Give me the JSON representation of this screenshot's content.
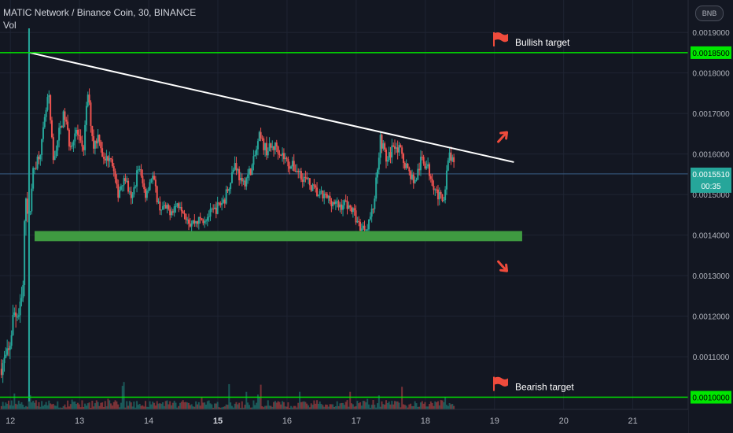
{
  "header": {
    "title": "MATIC Network / Binance Coin, 30, BINANCE",
    "indicator": "Vol",
    "symbol_badge": "BNB"
  },
  "colors": {
    "background": "#131722",
    "grid": "#1f2433",
    "up": "#26a69a",
    "down": "#ef5350",
    "target_line": "#00e600",
    "trendline": "#ffffff",
    "support_zone": "#3f9a41",
    "arrow": "#ef4b3c",
    "last_price": "#26a69a",
    "axis_text": "#b2b5be"
  },
  "icons": [
    "flag-icon",
    "arrow-up-right-icon",
    "arrow-down-right-icon"
  ],
  "chart_data": {
    "type": "candlestick",
    "grid": true,
    "ylim": [
      0.00097,
      0.00198
    ],
    "xlim": [
      11.85,
      21.8
    ],
    "y_ticks": [
      "0.0011000",
      "0.0012000",
      "0.0013000",
      "0.0014000",
      "0.0015000",
      "0.0016000",
      "0.0017000",
      "0.0018000",
      "0.0019000"
    ],
    "y_tick_values": [
      0.0011,
      0.0012,
      0.0013,
      0.0014,
      0.0015,
      0.0016,
      0.0017,
      0.0018,
      0.0019
    ],
    "x_ticks": [
      "12",
      "13",
      "14",
      "15",
      "16",
      "17",
      "18",
      "19",
      "20",
      "21"
    ],
    "x_tick_values": [
      12,
      13,
      14,
      15,
      16,
      17,
      18,
      19,
      20,
      21
    ],
    "x_tick_bold": [
      "15"
    ],
    "last_price": {
      "value": 0.001551,
      "label": "0.0015510",
      "countdown": "00:35"
    },
    "targets": [
      {
        "name": "Bullish target",
        "value": 0.00185,
        "label": "0.0018500"
      },
      {
        "name": "Bearish target",
        "value": 0.001,
        "label": "0.0010000"
      }
    ],
    "trendline": {
      "start": [
        12.28,
        0.00185
      ],
      "end": [
        19.28,
        0.00158
      ]
    },
    "support_zone": {
      "x": [
        12.35,
        19.4
      ],
      "y": [
        0.001385,
        0.00141
      ]
    },
    "arrows": [
      {
        "direction": "up",
        "x": 19.1,
        "y": 0.00164
      },
      {
        "direction": "down",
        "x": 19.1,
        "y": 0.001325
      }
    ],
    "price_path_x": [
      11.85,
      11.98,
      12.05,
      12.12,
      12.18,
      12.22,
      12.27,
      12.32,
      12.45,
      12.55,
      12.62,
      12.7,
      12.78,
      12.86,
      12.95,
      13.05,
      13.12,
      13.2,
      13.28,
      13.35,
      13.45,
      13.55,
      13.65,
      13.75,
      13.85,
      13.95,
      14.05,
      14.15,
      14.3,
      14.45,
      14.6,
      14.8,
      14.95,
      15.1,
      15.25,
      15.35,
      15.5,
      15.6,
      15.7,
      15.85,
      16.0,
      16.15,
      16.3,
      16.45,
      16.6,
      16.75,
      16.85,
      16.95,
      17.05,
      17.15,
      17.25,
      17.35,
      17.45,
      17.55,
      17.65,
      17.75,
      17.85,
      17.95,
      18.05,
      18.15,
      18.25,
      18.35,
      18.45
    ],
    "price_path_y": [
      0.00107,
      0.00111,
      0.00121,
      0.0012,
      0.00125,
      0.00152,
      0.00143,
      0.00155,
      0.00162,
      0.00175,
      0.00158,
      0.00165,
      0.0017,
      0.00162,
      0.00166,
      0.0016,
      0.00175,
      0.00162,
      0.00165,
      0.00158,
      0.0016,
      0.0015,
      0.00155,
      0.00148,
      0.00157,
      0.0015,
      0.00155,
      0.00147,
      0.00146,
      0.00148,
      0.00143,
      0.00144,
      0.00146,
      0.00149,
      0.00158,
      0.00152,
      0.00157,
      0.00164,
      0.00161,
      0.00162,
      0.00158,
      0.00156,
      0.00153,
      0.0015,
      0.00149,
      0.00147,
      0.00148,
      0.00146,
      0.00142,
      0.00142,
      0.00147,
      0.00164,
      0.00158,
      0.00163,
      0.0016,
      0.00156,
      0.00153,
      0.00159,
      0.00156,
      0.00151,
      0.00148,
      0.0016,
      0.00155
    ]
  }
}
